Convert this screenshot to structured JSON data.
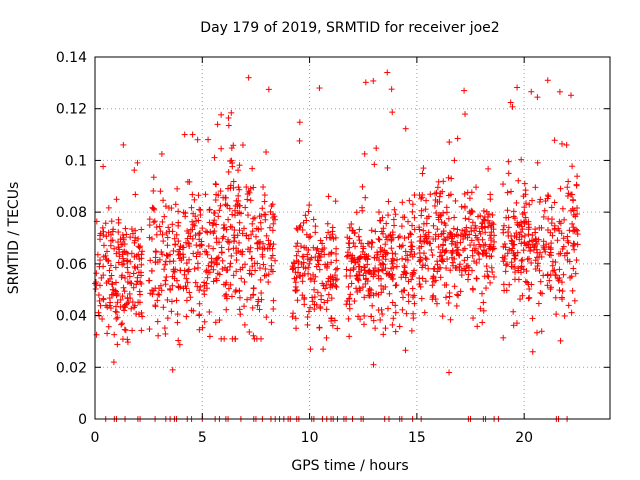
{
  "chart_data": {
    "type": "scatter",
    "title": "Day 179 of 2019, SRMTID for receiver joe2",
    "xlabel": "GPS time / hours",
    "ylabel": "SRMTID / TECUs",
    "xlim": [
      0,
      24
    ],
    "ylim": [
      0,
      0.14
    ],
    "x_ticks": [
      0,
      5,
      10,
      15,
      20
    ],
    "y_ticks": [
      0,
      0.02,
      0.04,
      0.06,
      0.08,
      0.1,
      0.12,
      0.14
    ],
    "x_tick_labels": [
      "0",
      "5",
      "10",
      "15",
      "20"
    ],
    "y_tick_labels": [
      "0",
      "0.02",
      "0.04",
      "0.06",
      "0.08",
      "0.1",
      "0.12",
      "0.14"
    ],
    "grid": true,
    "marker": "+",
    "color": "#ff0000",
    "series": [
      {
        "name": "SRMTID",
        "clusters": [
          {
            "x_start": 0.0,
            "x_end": 2.2,
            "n": 200,
            "center": 0.057,
            "spread": 0.012,
            "max": 0.106,
            "min": 0.022
          },
          {
            "x_start": 2.5,
            "x_end": 5.3,
            "n": 220,
            "center": 0.062,
            "spread": 0.013,
            "max": 0.11,
            "min": 0.019
          },
          {
            "x_start": 5.3,
            "x_end": 8.4,
            "n": 280,
            "center": 0.066,
            "spread": 0.016,
            "max": 0.132,
            "min": 0.031
          },
          {
            "x_start": 9.2,
            "x_end": 11.3,
            "n": 170,
            "center": 0.058,
            "spread": 0.011,
            "max": 0.128,
            "min": 0.027
          },
          {
            "x_start": 11.7,
            "x_end": 14.9,
            "n": 300,
            "center": 0.058,
            "spread": 0.012,
            "max": 0.134,
            "min": 0.021
          },
          {
            "x_start": 15.1,
            "x_end": 18.6,
            "n": 330,
            "center": 0.067,
            "spread": 0.012,
            "max": 0.127,
            "min": 0.018
          },
          {
            "x_start": 19.0,
            "x_end": 22.5,
            "n": 300,
            "center": 0.065,
            "spread": 0.013,
            "max": 0.131,
            "min": 0.026
          }
        ],
        "zero_hours": [
          0.5,
          0.9,
          1.0,
          1.4,
          2.0,
          2.1,
          2.8,
          3.3,
          3.5,
          3.7,
          3.8,
          4.3,
          4.5,
          5.0,
          5.6,
          5.8,
          6.1,
          6.2,
          6.8,
          7.4,
          7.5,
          7.8,
          8.2,
          8.4,
          8.6,
          8.8,
          9.0,
          9.1,
          9.4,
          9.5,
          10.1,
          10.2,
          10.6,
          10.8,
          11.0,
          11.1,
          11.3,
          11.6,
          11.7,
          12.0,
          12.4,
          12.5,
          13.5,
          13.7,
          14.2,
          14.3,
          14.8,
          15.2,
          17.4,
          17.5,
          18.1,
          18.2,
          18.6,
          18.8,
          21.5,
          21.6,
          22.0
        ]
      }
    ]
  }
}
